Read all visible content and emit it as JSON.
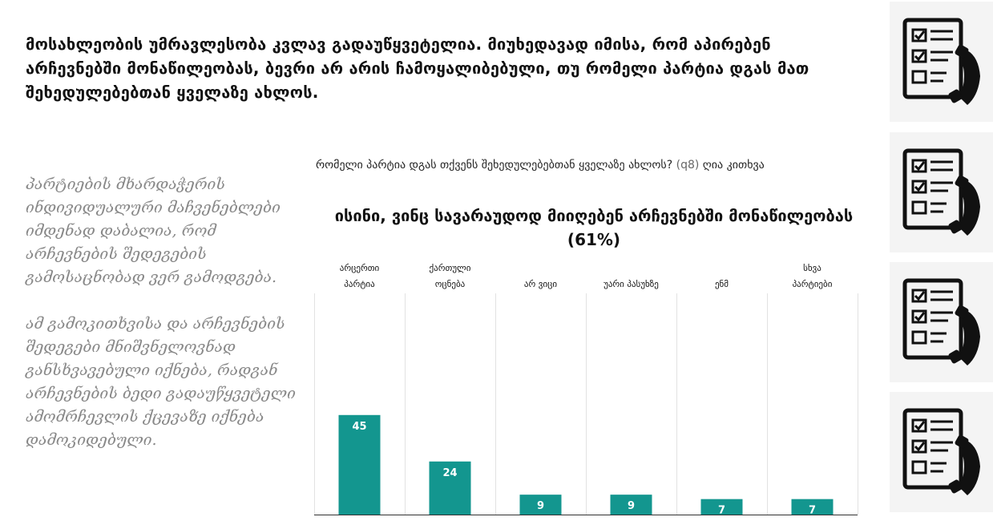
{
  "headline": "მოსახლეობის უმრავლესობა კვლავ გადაუწყვეტელია. მიუხედავად იმისა, რომ აპირებენ არჩევნებში მონაწილეობას, ბევრი არ არის ჩამოყალიბებული, თუ რომელი პარტია დგას მათ შეხედულებებთან ყველაზე ახლოს.",
  "quote": {
    "p1": "პარტიების მხარდაჭერის ინდივიდუალური მაჩვენებლები იმდენად დაბალია, რომ არჩევნების შედეგების გამოსაცნობად ვერ გამოდგება.",
    "p2": "ამ გამოკითხვისა და არჩევნების შედეგები მნიშვნელოვნად განსხვავებული იქნება, რადგან არჩევნების ბედი გადაუწყვეტელი ამომრჩევლის ქცევაზე იქნება დამოკიდებული."
  },
  "question": {
    "text": "რომელი პარტია დგას თქვენს შეხედულებებთან ყველაზე ახლოს?",
    "code": "(q8)",
    "type": "ღია კითხვა"
  },
  "chart_data": {
    "type": "bar",
    "title": "ისინი, ვინც სავარაუდოდ მიიღებენ არჩევნებში მონაწილეობას (61%)",
    "categories": [
      "არცერთი პარტია",
      "ქართული ოცნება",
      "არ ვიცი",
      "უარი პასუხზე",
      "ენმ",
      "სხვა პარტიები"
    ],
    "values": [
      45,
      24,
      9,
      9,
      7,
      7
    ],
    "ylim": [
      0,
      100
    ],
    "bar_color": "#13968f",
    "grid": false,
    "legend": "none"
  },
  "colors": {
    "bar": "#13968f",
    "quote_text": "#888888",
    "icon_tile_bg": "#f4f4f4"
  },
  "sidebar_icons": [
    "survey-phone-icon",
    "survey-phone-icon",
    "survey-phone-icon",
    "survey-phone-icon"
  ]
}
